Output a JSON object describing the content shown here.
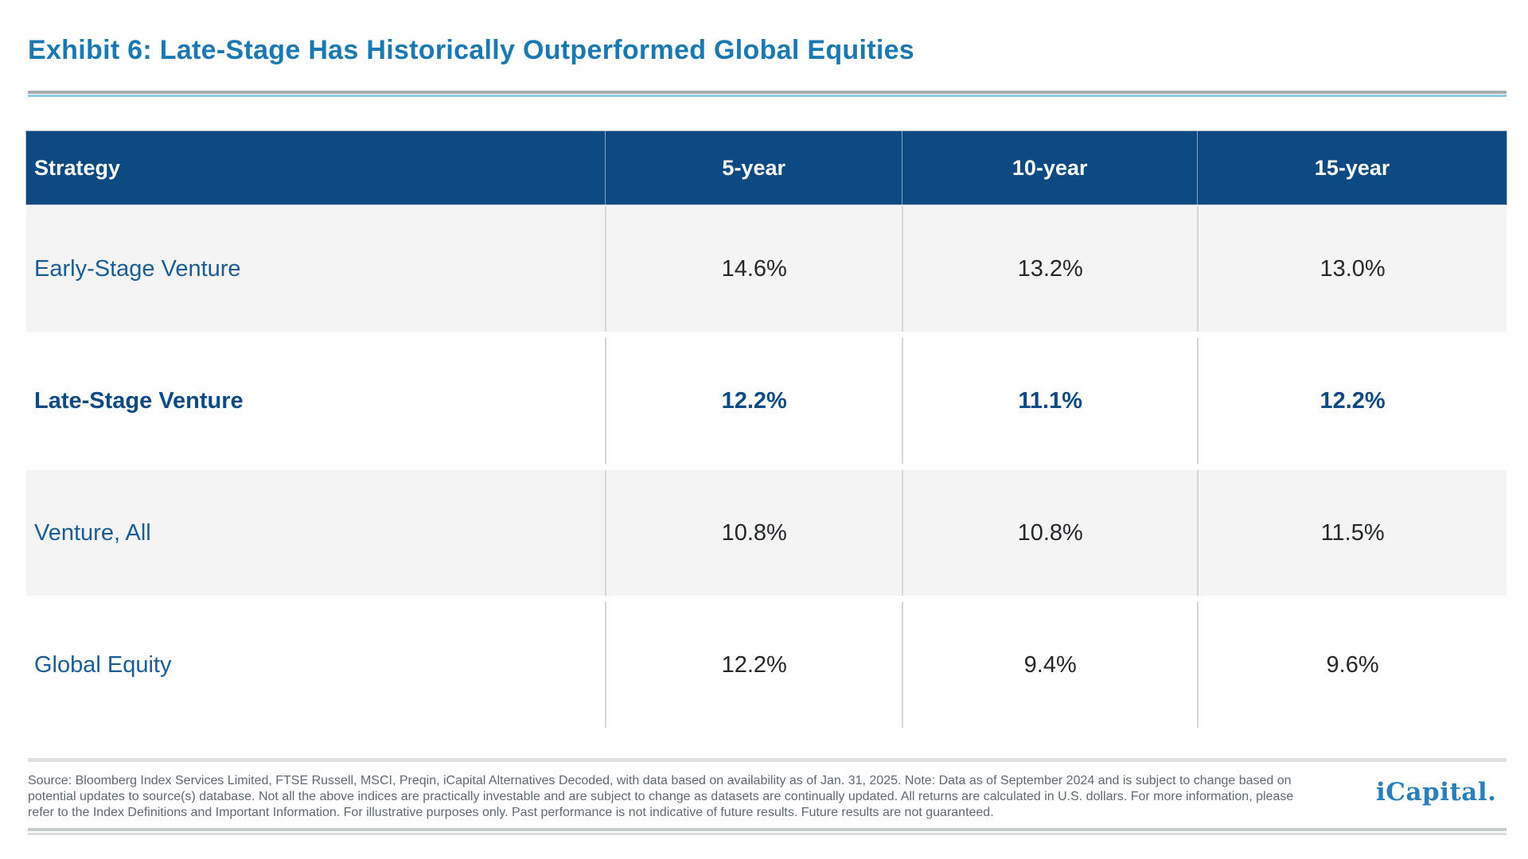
{
  "exhibit": {
    "title": "Exhibit 6: Late-Stage Has Historically Outperformed Global Equities"
  },
  "table": {
    "columns": [
      "Strategy",
      "5-year",
      "10-year",
      "15-year"
    ],
    "rows": [
      {
        "strategy": "Early-Stage Venture",
        "values": [
          "14.6%",
          "13.2%",
          "13.0%"
        ],
        "emphasized": false
      },
      {
        "strategy": "Late-Stage Venture",
        "values": [
          "12.2%",
          "11.1%",
          "12.2%"
        ],
        "emphasized": true
      },
      {
        "strategy": "Venture, All",
        "values": [
          "10.8%",
          "10.8%",
          "11.5%"
        ],
        "emphasized": false
      },
      {
        "strategy": "Global Equity",
        "values": [
          "12.2%",
          "9.4%",
          "9.6%"
        ],
        "emphasized": false
      }
    ]
  },
  "footer": {
    "lines": [
      "Source: Bloomberg Index Services Limited, FTSE Russell, MSCI, Preqin, iCapital Alternatives Decoded, with data based on availability as of Jan. 31, 2025. Note: Data as of September 2024 and is subject to change based on",
      "potential updates to source(s) database. Not all the above indices are practically investable and are subject to change as datasets are continually updated. All returns are calculated in U.S. dollars. For more information, please",
      "refer to the Index Definitions and Important Information. For illustrative purposes only. Past performance is not indicative of future results. Future results are not guaranteed."
    ],
    "logo_text": "iCapital."
  },
  "colors": {
    "header_bg": "#0d4a84",
    "title_blue": "#1a78b2",
    "strategy_blue": "#1a5c96",
    "em_blue": "#0d4a84",
    "value_dark": "#25282a",
    "row_alt_bg": "#f4f4f4",
    "divider": "#d6d6d6",
    "footnote_gray": "#5d6970",
    "logo_blue": "#2b7fb8",
    "rule_gray": "#a5abae",
    "rule_lightblue": "#8fcbe6"
  },
  "chart_data": {
    "type": "table",
    "title": "Exhibit 6: Late-Stage Has Historically Outperformed Global Equities",
    "categories": [
      "5-year",
      "10-year",
      "15-year"
    ],
    "row_header_label": "Strategy",
    "series": [
      {
        "name": "Early-Stage Venture",
        "values": [
          14.6,
          13.2,
          13.0
        ]
      },
      {
        "name": "Late-Stage Venture",
        "values": [
          12.2,
          11.1,
          12.2
        ]
      },
      {
        "name": "Venture, All",
        "values": [
          10.8,
          10.8,
          11.5
        ]
      },
      {
        "name": "Global Equity",
        "values": [
          12.2,
          9.4,
          9.6
        ]
      }
    ],
    "unit": "%",
    "highlighted_row": "Late-Stage Venture",
    "source_note": "Source: Bloomberg Index Services Limited, FTSE Russell, MSCI, Preqin, iCapital Alternatives Decoded, with data based on availability as of Jan. 31, 2025. Note: Data as of September 2024 and is subject to change based on potential updates to source(s) database. Not all the above indices are practically investable and are subject to change as datasets are continually updated. All returns are calculated in U.S. dollars. For more information, please refer to the Index Definitions and Important Information. For illustrative purposes only. Past performance is not indicative of future results. Future results are not guaranteed."
  }
}
